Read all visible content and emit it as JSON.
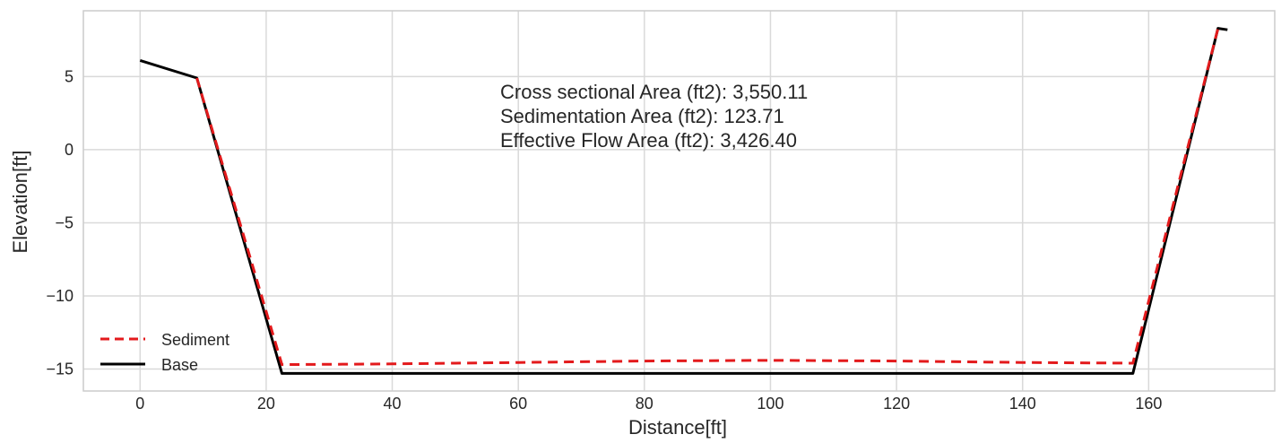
{
  "chart_data": {
    "type": "line",
    "xlabel": "Distance[ft]",
    "ylabel": "Elevation[ft]",
    "xlim": [
      -9,
      180
    ],
    "ylim": [
      -16.5,
      9.5
    ],
    "xticks": [
      0,
      20,
      40,
      60,
      80,
      100,
      120,
      140,
      160
    ],
    "yticks": [
      -15,
      -10,
      -5,
      0,
      5
    ],
    "ytick_labels": [
      "−15",
      "−10",
      "−5",
      "0",
      "5"
    ],
    "grid": true,
    "legend_position": "lower-left",
    "annotations": [
      "Cross sectional Area (ft2): 3,550.11",
      "Sedimentation Area (ft2): 123.71",
      "Effective Flow Area (ft2): 3,426.40"
    ],
    "series": [
      {
        "name": "Sediment",
        "color": "#e31a1c",
        "style": "dashed",
        "x": [
          9,
          22.5,
          40,
          60,
          80,
          100,
          120,
          140,
          157.5,
          171
        ],
        "y": [
          4.9,
          -14.7,
          -14.65,
          -14.55,
          -14.45,
          -14.4,
          -14.45,
          -14.55,
          -14.6,
          8.3
        ]
      },
      {
        "name": "Base",
        "color": "#000000",
        "style": "solid",
        "x": [
          0,
          9,
          22.5,
          157.5,
          171,
          172.5
        ],
        "y": [
          6.1,
          4.9,
          -15.3,
          -15.3,
          8.3,
          8.2
        ]
      }
    ]
  }
}
